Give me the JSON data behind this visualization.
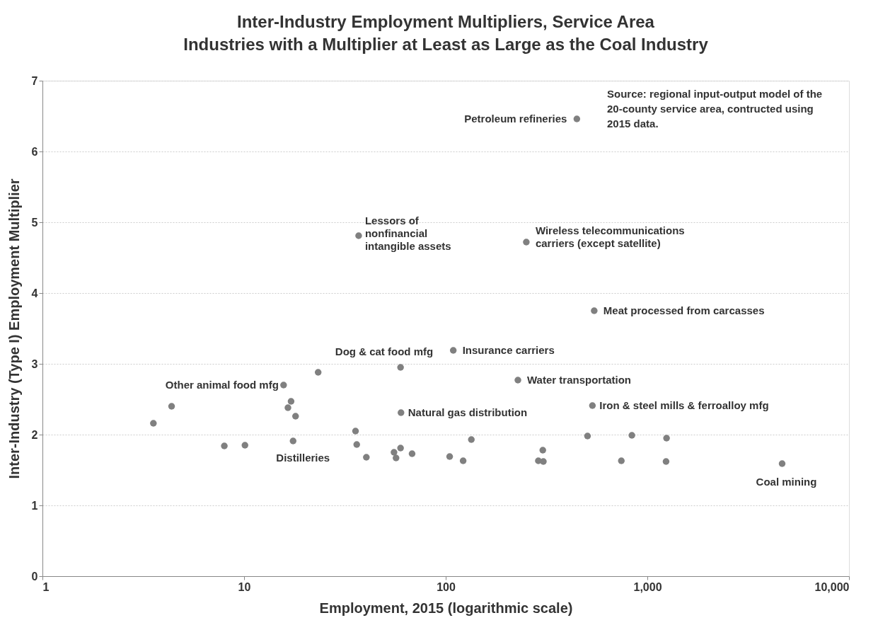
{
  "chart_data": {
    "type": "scatter",
    "title": "Inter-Industry Employment Multipliers, Service Area",
    "subtitle": "Industries with a Multiplier at Least as Large as the Coal Industry",
    "xlabel": "Employment, 2015 (logarithmic scale)",
    "ylabel": "Inter-Industry (Type I) Employment Multiplier",
    "log": "x",
    "grid": "y",
    "marker": "circle",
    "xlim": [
      1,
      10000
    ],
    "xticks": [
      1,
      10,
      100,
      {
        "value": 1000,
        "label": "1,000"
      },
      {
        "value": 10000,
        "label": "10,000"
      }
    ],
    "ylim": [
      0,
      7
    ],
    "yticks": [
      0,
      1,
      2,
      3,
      4,
      5,
      6,
      7
    ],
    "series": [
      {
        "color": "#808080",
        "x": [
          3.55,
          4.37,
          7.98,
          10.1,
          15.7,
          17.1,
          16.5,
          18.0,
          17.5,
          23.3,
          35.7,
          36.2,
          40.4,
          59.7,
          60.0,
          55.4,
          56.7,
          59.7,
          68.1,
          109,
          104.6,
          122,
          134,
          228,
          303,
          288,
          305,
          534,
          505,
          838,
          743,
          1245,
          1238,
          4660,
          447,
          37.0,
          251,
          545
        ],
        "values": [
          2.16,
          2.4,
          1.84,
          1.85,
          2.7,
          2.47,
          2.38,
          2.26,
          1.91,
          2.88,
          2.05,
          1.86,
          1.68,
          2.95,
          2.31,
          1.75,
          1.67,
          1.81,
          1.73,
          3.19,
          1.69,
          1.63,
          1.93,
          2.77,
          1.78,
          1.63,
          1.62,
          2.41,
          1.98,
          1.99,
          1.63,
          1.95,
          1.62,
          1.59,
          6.46,
          4.81,
          4.72,
          3.75
        ]
      }
    ],
    "annotations": [
      {
        "text": "Petroleum refineries",
        "x": 447,
        "y": 6.46
      },
      {
        "text": "Lessors of\nnonfinancial\nintangible assets",
        "x": 37.0,
        "y": 4.81
      },
      {
        "text": "Wireless telecommunications\ncarriers (except satellite)",
        "x": 251,
        "y": 4.72
      },
      {
        "text": "Meat processed from carcasses",
        "x": 545,
        "y": 3.75
      },
      {
        "text": "Insurance carriers",
        "x": 109,
        "y": 3.19
      },
      {
        "text": "Dog & cat food mfg",
        "x": 59.7,
        "y": 2.95
      },
      {
        "text": "Water transportation",
        "x": 228,
        "y": 2.77
      },
      {
        "text": "Natural gas distribution",
        "x": 60.0,
        "y": 2.31
      },
      {
        "text": "Iron & steel mills & ferroalloy mfg",
        "x": 534,
        "y": 2.41
      },
      {
        "text": "Other animal food mfg",
        "x": 15.7,
        "y": 2.7
      },
      {
        "text": "Distilleries",
        "x": 17.5,
        "y": 1.91
      },
      {
        "text": "Coal mining",
        "x": 4660,
        "y": 1.59
      },
      "Source: regional input-output model of the\n20-county service area, contructed using\n2015 data."
    ]
  }
}
